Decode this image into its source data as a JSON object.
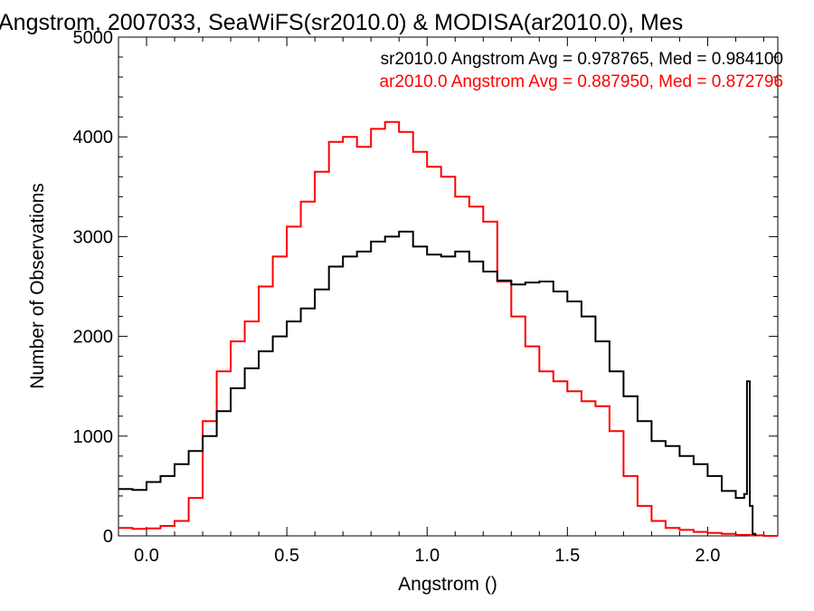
{
  "chart_data": {
    "type": "line",
    "title": "Angstrom, 2007033, SeaWiFS(sr2010.0) & MODISA(ar2010.0), Mes",
    "xlabel": "Angstrom ()",
    "ylabel": "Number of Observations",
    "xlim": [
      -0.1,
      2.25
    ],
    "ylim": [
      0,
      5000
    ],
    "x_ticks": [
      "0.0",
      "0.5",
      "1.0",
      "1.5",
      "2.0"
    ],
    "x_tick_values": [
      0.0,
      0.5,
      1.0,
      1.5,
      2.0
    ],
    "y_ticks": [
      "0",
      "1000",
      "2000",
      "3000",
      "4000",
      "5000"
    ],
    "y_tick_values": [
      0,
      1000,
      2000,
      3000,
      4000,
      5000
    ],
    "grid": false,
    "legend_placement": "top-right",
    "annotations": [
      {
        "text": "sr2010.0 Angstrom Avg = 0.978765, Med = 0.984100",
        "color": "#000000"
      },
      {
        "text": "ar2010.0 Angstrom Avg = 0.887950, Med = 0.872796",
        "color": "#ff0000"
      }
    ],
    "series": [
      {
        "color": "#000000",
        "points": [
          [
            -0.1,
            470
          ],
          [
            -0.05,
            460
          ],
          [
            0.0,
            540
          ],
          [
            0.05,
            600
          ],
          [
            0.1,
            720
          ],
          [
            0.15,
            850
          ],
          [
            0.2,
            1000
          ],
          [
            0.25,
            1250
          ],
          [
            0.3,
            1480
          ],
          [
            0.35,
            1680
          ],
          [
            0.4,
            1850
          ],
          [
            0.45,
            2000
          ],
          [
            0.5,
            2150
          ],
          [
            0.55,
            2280
          ],
          [
            0.6,
            2470
          ],
          [
            0.65,
            2700
          ],
          [
            0.7,
            2800
          ],
          [
            0.75,
            2850
          ],
          [
            0.8,
            2950
          ],
          [
            0.85,
            3000
          ],
          [
            0.9,
            3050
          ],
          [
            0.95,
            2900
          ],
          [
            1.0,
            2820
          ],
          [
            1.05,
            2800
          ],
          [
            1.1,
            2850
          ],
          [
            1.15,
            2750
          ],
          [
            1.2,
            2650
          ],
          [
            1.25,
            2560
          ],
          [
            1.3,
            2520
          ],
          [
            1.35,
            2540
          ],
          [
            1.4,
            2550
          ],
          [
            1.45,
            2450
          ],
          [
            1.5,
            2350
          ],
          [
            1.55,
            2200
          ],
          [
            1.6,
            1950
          ],
          [
            1.65,
            1650
          ],
          [
            1.7,
            1400
          ],
          [
            1.75,
            1150
          ],
          [
            1.8,
            950
          ],
          [
            1.85,
            900
          ],
          [
            1.9,
            800
          ],
          [
            1.95,
            720
          ],
          [
            2.0,
            600
          ],
          [
            2.05,
            450
          ],
          [
            2.1,
            380
          ],
          [
            2.13,
            420
          ],
          [
            2.14,
            1550
          ],
          [
            2.15,
            300
          ],
          [
            2.16,
            20
          ],
          [
            2.17,
            0
          ]
        ]
      },
      {
        "color": "#ff0000",
        "points": [
          [
            -0.1,
            80
          ],
          [
            -0.05,
            70
          ],
          [
            0.0,
            75
          ],
          [
            0.05,
            100
          ],
          [
            0.1,
            150
          ],
          [
            0.15,
            380
          ],
          [
            0.2,
            1150
          ],
          [
            0.25,
            1650
          ],
          [
            0.3,
            1950
          ],
          [
            0.35,
            2150
          ],
          [
            0.4,
            2500
          ],
          [
            0.45,
            2800
          ],
          [
            0.5,
            3100
          ],
          [
            0.55,
            3350
          ],
          [
            0.6,
            3650
          ],
          [
            0.65,
            3950
          ],
          [
            0.7,
            4000
          ],
          [
            0.75,
            3900
          ],
          [
            0.8,
            4080
          ],
          [
            0.85,
            4150
          ],
          [
            0.9,
            4050
          ],
          [
            0.95,
            3850
          ],
          [
            1.0,
            3700
          ],
          [
            1.05,
            3600
          ],
          [
            1.1,
            3400
          ],
          [
            1.15,
            3300
          ],
          [
            1.2,
            3150
          ],
          [
            1.25,
            2550
          ],
          [
            1.3,
            2200
          ],
          [
            1.35,
            1900
          ],
          [
            1.4,
            1650
          ],
          [
            1.45,
            1550
          ],
          [
            1.5,
            1450
          ],
          [
            1.55,
            1350
          ],
          [
            1.6,
            1300
          ],
          [
            1.65,
            1050
          ],
          [
            1.7,
            600
          ],
          [
            1.75,
            300
          ],
          [
            1.8,
            150
          ],
          [
            1.85,
            80
          ],
          [
            1.9,
            60
          ],
          [
            1.95,
            40
          ],
          [
            2.0,
            30
          ],
          [
            2.05,
            20
          ],
          [
            2.1,
            10
          ],
          [
            2.15,
            5
          ],
          [
            2.2,
            0
          ],
          [
            2.25,
            0
          ]
        ]
      }
    ]
  }
}
